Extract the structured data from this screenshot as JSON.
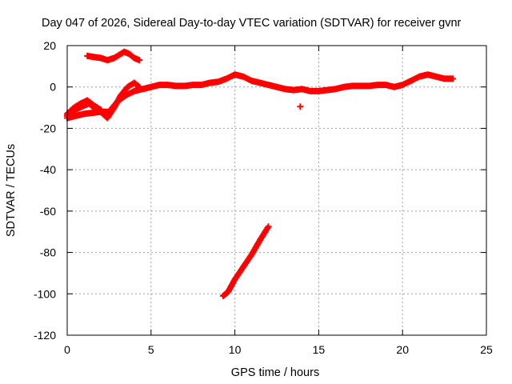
{
  "chart_data": {
    "type": "scatter",
    "title": "Day 047 of 2026, Sidereal Day-to-day VTEC variation (SDTVAR) for receiver gvnr",
    "xlabel": "GPS time / hours",
    "ylabel": "SDTVAR / TECUs",
    "xlim": [
      0,
      25
    ],
    "ylim": [
      -120,
      20
    ],
    "xticks": [
      0,
      5,
      10,
      15,
      20,
      25
    ],
    "yticks": [
      -120,
      -100,
      -80,
      -60,
      -40,
      -20,
      0,
      20
    ],
    "grid": true,
    "marker": "plus",
    "color": "#ff0000",
    "series": [
      {
        "points": [
          [
            0,
            -15
          ],
          [
            0.5,
            -14
          ],
          [
            1.0,
            -13
          ],
          [
            1.5,
            -12.5
          ],
          [
            2.0,
            -12
          ],
          [
            2.5,
            -12
          ],
          [
            3.0,
            -7
          ],
          [
            3.5,
            -4
          ],
          [
            4.0,
            -2
          ],
          [
            4.5,
            -1
          ],
          [
            5.0,
            0
          ],
          [
            5.5,
            1
          ],
          [
            6.0,
            1
          ],
          [
            6.5,
            0.5
          ],
          [
            7.0,
            0.5
          ],
          [
            7.5,
            1
          ],
          [
            8.0,
            1
          ],
          [
            8.5,
            2
          ],
          [
            9.0,
            2.5
          ],
          [
            9.5,
            4
          ],
          [
            10.0,
            6
          ],
          [
            10.5,
            5
          ],
          [
            11.0,
            3
          ],
          [
            11.5,
            2
          ],
          [
            12.0,
            1
          ],
          [
            12.5,
            0
          ],
          [
            13.0,
            -1
          ],
          [
            13.5,
            -1.5
          ],
          [
            14.0,
            -1
          ],
          [
            14.5,
            -2
          ],
          [
            15.0,
            -2
          ],
          [
            15.5,
            -1.5
          ],
          [
            16.0,
            -1
          ],
          [
            16.5,
            0
          ],
          [
            17.0,
            0.5
          ],
          [
            17.5,
            0.5
          ],
          [
            18.0,
            0.5
          ],
          [
            18.5,
            1
          ],
          [
            19.0,
            1
          ],
          [
            19.5,
            0
          ],
          [
            20.0,
            1
          ],
          [
            20.5,
            3
          ],
          [
            21.0,
            5
          ],
          [
            21.5,
            6
          ],
          [
            22.0,
            5
          ],
          [
            22.5,
            4
          ],
          [
            23.0,
            4
          ]
        ]
      },
      {
        "points": [
          [
            0,
            -14
          ],
          [
            0.5,
            -11
          ],
          [
            1.0,
            -9
          ],
          [
            1.3,
            -8
          ],
          [
            1.6,
            -10
          ],
          [
            2.0,
            -12
          ],
          [
            2.4,
            -15
          ],
          [
            2.8,
            -10
          ],
          [
            3.2,
            -4
          ],
          [
            3.6,
            0
          ],
          [
            4.0,
            2
          ],
          [
            4.3,
            0
          ]
        ]
      },
      {
        "points": [
          [
            0,
            -13
          ],
          [
            0.4,
            -10
          ],
          [
            0.8,
            -8
          ],
          [
            1.2,
            -6.5
          ],
          [
            1.6,
            -9
          ],
          [
            2.0,
            -11
          ]
        ]
      },
      {
        "points": [
          [
            1.2,
            15
          ],
          [
            1.6,
            14.5
          ],
          [
            2.0,
            14
          ],
          [
            2.4,
            13
          ],
          [
            2.8,
            14
          ],
          [
            3.1,
            15.5
          ],
          [
            3.4,
            17
          ],
          [
            3.7,
            16
          ],
          [
            4.0,
            14
          ],
          [
            4.3,
            13
          ]
        ]
      },
      {
        "points": [
          [
            9.3,
            -101
          ],
          [
            9.6,
            -99
          ],
          [
            10.0,
            -93
          ],
          [
            10.5,
            -87
          ],
          [
            11.0,
            -81
          ],
          [
            11.5,
            -74
          ],
          [
            12.0,
            -67.5
          ]
        ]
      },
      {
        "points": [
          [
            13.9,
            -9.5
          ]
        ]
      }
    ]
  }
}
